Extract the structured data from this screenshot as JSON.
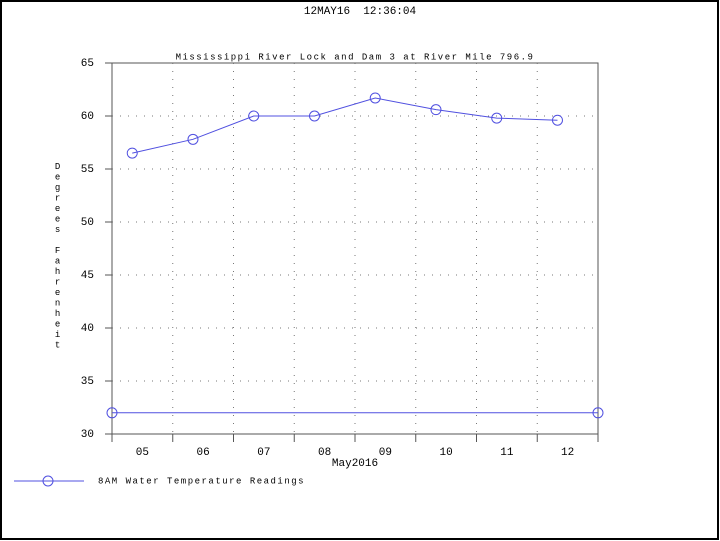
{
  "chart_data": {
    "type": "line",
    "header": "12MAY16  12:36:04",
    "title": "Mississippi River Lock and Dam 3 at River Mile 796.9",
    "ylabel": "Degrees Fahrenheit",
    "xlabel": "May2016",
    "x": [
      5.333,
      6.333,
      7.333,
      8.333,
      9.333,
      10.333,
      11.333,
      12.333
    ],
    "series": [
      {
        "name": "8AM Water Temperature Readings",
        "color": "#5050e0",
        "values": [
          56.5,
          57.8,
          60.0,
          60.0,
          61.7,
          60.6,
          59.8,
          59.6
        ]
      }
    ],
    "reference_line": {
      "y": 32,
      "color": "#5050e0"
    },
    "xlim": [
      5,
      13
    ],
    "xticks": [
      5,
      6,
      7,
      8,
      9,
      10,
      11,
      12,
      13
    ],
    "xtick_labels": [
      {
        "value": 5.5,
        "label": "05"
      },
      {
        "value": 6.5,
        "label": "06"
      },
      {
        "value": 7.5,
        "label": "07"
      },
      {
        "value": 8.5,
        "label": "08"
      },
      {
        "value": 9.5,
        "label": "09"
      },
      {
        "value": 10.5,
        "label": "10"
      },
      {
        "value": 11.5,
        "label": "11"
      },
      {
        "value": 12.5,
        "label": "12"
      }
    ],
    "ylim": [
      30,
      65
    ],
    "yticks": [
      30,
      35,
      40,
      45,
      50,
      55,
      60,
      65
    ],
    "grid": true
  }
}
